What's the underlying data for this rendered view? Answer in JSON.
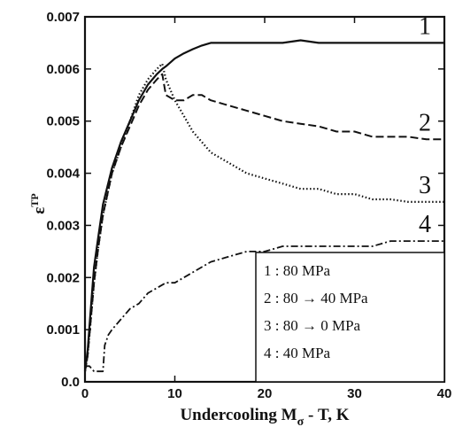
{
  "chart_data": {
    "type": "line",
    "xlabel": "Undercooling M",
    "xlabel_sub": "σ",
    "xlabel_suffix": " - T, K",
    "ylabel": "ε",
    "ylabel_sup": "TP",
    "xlim": [
      0,
      40
    ],
    "ylim": [
      0.0,
      0.007
    ],
    "x_ticks": [
      0,
      10,
      20,
      30,
      40
    ],
    "x_tick_labels": [
      "0",
      "10",
      "20",
      "30",
      "40"
    ],
    "y_ticks": [
      0.0,
      0.001,
      0.002,
      0.003,
      0.004,
      0.005,
      0.006,
      0.007
    ],
    "y_tick_labels": [
      "0.0",
      "0.001",
      "0.002",
      "0.003",
      "0.004",
      "0.005",
      "0.006",
      "0.007"
    ],
    "legend_placement": "bottom-right",
    "legend": [
      "1 : 80 MPa",
      "2 : 80 → 40 MPa",
      "3 : 80 → 0 MPa",
      "4 : 40 MPa"
    ],
    "series": [
      {
        "label": "1",
        "style": "solid",
        "x": [
          0,
          0.3,
          0.6,
          1.0,
          1.5,
          2.0,
          3.0,
          4.0,
          5.0,
          6.0,
          7.0,
          8.0,
          8.6,
          9.0,
          10.0,
          11.0,
          12.0,
          13.0,
          14.0,
          16.0,
          18.0,
          20.0,
          22.0,
          24.0,
          26.0,
          28.0,
          30.0,
          32.0,
          34.0,
          36.0,
          38.0,
          40.0
        ],
        "y": [
          0.0002,
          0.0006,
          0.0013,
          0.0022,
          0.0028,
          0.0034,
          0.0041,
          0.0046,
          0.005,
          0.0054,
          0.0057,
          0.0059,
          0.006,
          0.00605,
          0.0062,
          0.0063,
          0.00638,
          0.00645,
          0.0065,
          0.0065,
          0.0065,
          0.0065,
          0.0065,
          0.00655,
          0.0065,
          0.0065,
          0.0065,
          0.0065,
          0.0065,
          0.0065,
          0.0065,
          0.0065
        ]
      },
      {
        "label": "2",
        "style": "dashed",
        "x": [
          0,
          0.3,
          0.6,
          1.0,
          1.5,
          2.0,
          3.0,
          4.0,
          5.0,
          6.0,
          7.0,
          8.0,
          8.6,
          9.0,
          10.0,
          11.0,
          12.0,
          13.0,
          14.0,
          16.0,
          18.0,
          20.0,
          22.0,
          24.0,
          26.0,
          28.0,
          30.0,
          32.0,
          34.0,
          36.0,
          38.0,
          40.0
        ],
        "y": [
          0.0002,
          0.0005,
          0.0011,
          0.0019,
          0.0026,
          0.0032,
          0.004,
          0.0045,
          0.0049,
          0.0053,
          0.0056,
          0.0058,
          0.0059,
          0.0055,
          0.0054,
          0.0054,
          0.0055,
          0.0055,
          0.0054,
          0.0053,
          0.0052,
          0.0051,
          0.005,
          0.00495,
          0.0049,
          0.0048,
          0.0048,
          0.0047,
          0.0047,
          0.0047,
          0.00465,
          0.00465
        ]
      },
      {
        "label": "3",
        "style": "dotted",
        "x": [
          0,
          0.3,
          0.6,
          1.0,
          1.5,
          2.0,
          3.0,
          4.0,
          5.0,
          6.0,
          7.0,
          8.0,
          8.6,
          9.0,
          10.0,
          11.0,
          12.0,
          13.0,
          14.0,
          16.0,
          18.0,
          20.0,
          22.0,
          24.0,
          26.0,
          28.0,
          30.0,
          32.0,
          34.0,
          36.0,
          38.0,
          40.0
        ],
        "y": [
          0.0002,
          0.0005,
          0.0011,
          0.0019,
          0.0026,
          0.0032,
          0.004,
          0.0045,
          0.005,
          0.0055,
          0.0058,
          0.006,
          0.0061,
          0.0058,
          0.0054,
          0.0051,
          0.0048,
          0.0046,
          0.0044,
          0.0042,
          0.004,
          0.0039,
          0.0038,
          0.0037,
          0.0037,
          0.0036,
          0.0036,
          0.0035,
          0.0035,
          0.00345,
          0.00345,
          0.00345
        ]
      },
      {
        "label": "4",
        "style": "dashdot",
        "x": [
          0,
          0.5,
          1.0,
          1.5,
          2.0,
          2.2,
          2.6,
          3.0,
          4.0,
          5.0,
          6.0,
          7.0,
          8.0,
          9.0,
          10.0,
          11.0,
          12.0,
          14.0,
          16.0,
          18.0,
          20.0,
          22.0,
          24.0,
          26.0,
          28.0,
          30.0,
          32.0,
          34.0,
          36.0,
          38.0,
          40.0
        ],
        "y": [
          0.0003,
          0.0003,
          0.0002,
          0.0002,
          0.0002,
          0.0007,
          0.0009,
          0.001,
          0.0012,
          0.0014,
          0.0015,
          0.0017,
          0.0018,
          0.0019,
          0.0019,
          0.002,
          0.0021,
          0.0023,
          0.0024,
          0.0025,
          0.0025,
          0.0026,
          0.0026,
          0.0026,
          0.0026,
          0.0026,
          0.0026,
          0.0027,
          0.0027,
          0.0027,
          0.0027
        ]
      }
    ]
  }
}
